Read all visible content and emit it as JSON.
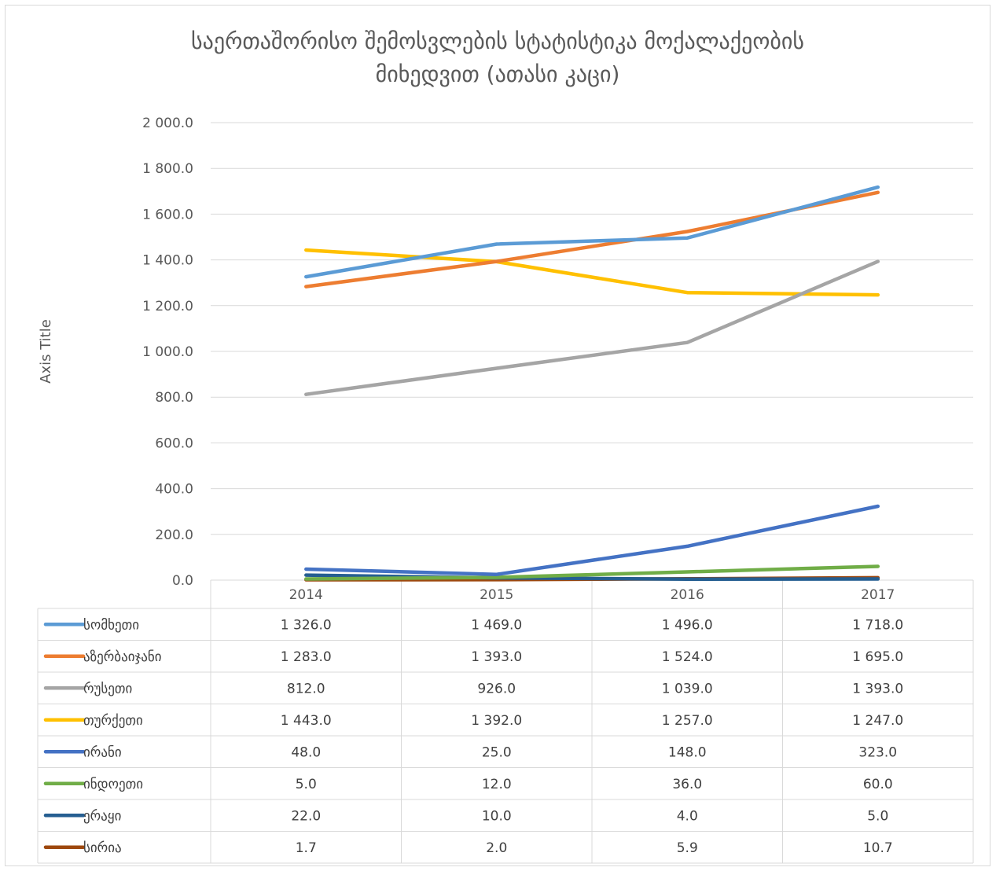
{
  "chart_data": {
    "type": "line",
    "title_lines": [
      "საერთაშორისო შემოსვლების სტატისტიკა მოქალაქეობის",
      "მიხედვით (ათასი კაცი)"
    ],
    "ylabel": "Axis Title",
    "xlabel": "",
    "categories": [
      "2014",
      "2015",
      "2016",
      "2017"
    ],
    "ylim": [
      0,
      2000
    ],
    "yticks": [
      "0.0",
      "200.0",
      "400.0",
      "600.0",
      "800.0",
      "1 000.0",
      "1 200.0",
      "1 400.0",
      "1 600.0",
      "1 800.0",
      "2 000.0"
    ],
    "grid": true,
    "legend": "data-table",
    "series": [
      {
        "name": "სომხეთი",
        "color": "#5B9BD5",
        "values": [
          1326.0,
          1469.0,
          1496.0,
          1718.0
        ],
        "labels": [
          "1 326.0",
          "1 469.0",
          "1 496.0",
          "1 718.0"
        ]
      },
      {
        "name": "აზერბაიჯანი",
        "color": "#ED7D31",
        "values": [
          1283.0,
          1393.0,
          1524.0,
          1695.0
        ],
        "labels": [
          "1 283.0",
          "1 393.0",
          "1 524.0",
          "1 695.0"
        ]
      },
      {
        "name": "რუსეთი",
        "color": "#A5A5A5",
        "values": [
          812.0,
          926.0,
          1039.0,
          1393.0
        ],
        "labels": [
          "812.0",
          "926.0",
          "1 039.0",
          "1 393.0"
        ]
      },
      {
        "name": "თურქეთი",
        "color": "#FFC000",
        "values": [
          1443.0,
          1392.0,
          1257.0,
          1247.0
        ],
        "labels": [
          "1 443.0",
          "1 392.0",
          "1 257.0",
          "1 247.0"
        ]
      },
      {
        "name": "ირანი",
        "color": "#4472C4",
        "values": [
          48.0,
          25.0,
          148.0,
          323.0
        ],
        "labels": [
          "48.0",
          "25.0",
          "148.0",
          "323.0"
        ]
      },
      {
        "name": "ინდოეთი",
        "color": "#70AD47",
        "values": [
          5.0,
          12.0,
          36.0,
          60.0
        ],
        "labels": [
          "5.0",
          "12.0",
          "36.0",
          "60.0"
        ]
      },
      {
        "name": "ერაყი",
        "color": "#255E91",
        "values": [
          22.0,
          10.0,
          4.0,
          5.0
        ],
        "labels": [
          "22.0",
          "10.0",
          "4.0",
          "5.0"
        ]
      },
      {
        "name": "სირია",
        "color": "#9E480E",
        "values": [
          1.7,
          2.0,
          5.9,
          10.7
        ],
        "labels": [
          "1.7",
          "2.0",
          "5.9",
          "10.7"
        ]
      }
    ]
  }
}
